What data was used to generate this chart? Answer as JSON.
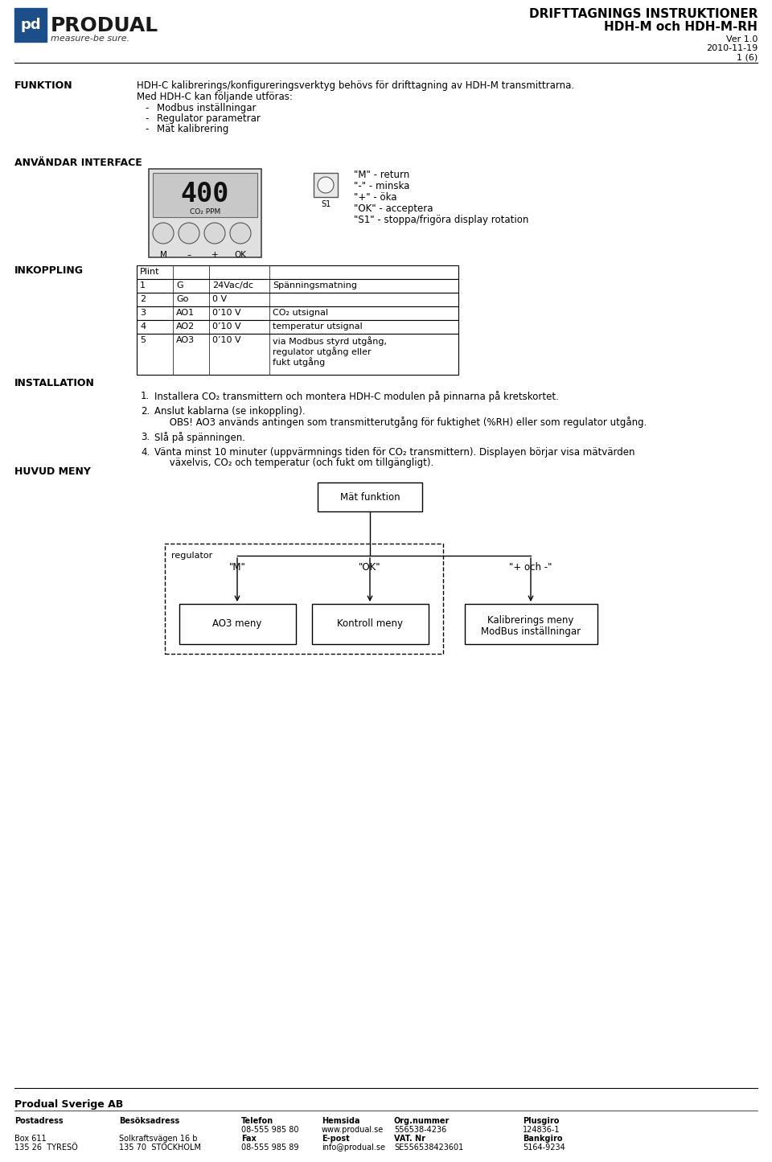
{
  "title_left": "DRIFTTAGNINGS INSTRUKTIONER",
  "title_sub": "HDH-M och HDH-M-RH",
  "version": "Ver 1.0",
  "date": "2010-11-19",
  "page": "1 (6)",
  "bg_color": "#ffffff",
  "section_funktion": "FUNKTION",
  "funktion_text1": "HDH-C kalibrerings/konfigureringsverktyg behövs för drifttagning av HDH-M transmittrarna.",
  "funktion_text2": "Med HDH-C kan följande utföras:",
  "funktion_bullets": [
    "Modbus inställningar",
    "Regulator parametrar",
    "Mät kalibrering"
  ],
  "section_anvander": "ANVÄNDAR INTERFACE",
  "anvander_desc": [
    "\"M\" - return",
    "\"-\" - minska",
    "\"+\" - öka",
    "\"OK\" - acceptera",
    "\"S1\" - stoppa/frigöra display rotation"
  ],
  "section_inkoppling": "INKOPPLING",
  "table_rows": [
    [
      "1",
      "G",
      "24Vac/dc",
      "Spänningsmatning"
    ],
    [
      "2",
      "Go",
      "0 V",
      ""
    ],
    [
      "3",
      "AO1",
      "0’10 V",
      "CO₂ utsignal"
    ],
    [
      "4",
      "AO2",
      "0’10 V",
      "temperatur utsignal"
    ],
    [
      "5",
      "AO3",
      "0’10 V",
      "via Modbus styrd utgång,\nregulator utgång eller\nfukt utgång"
    ]
  ],
  "section_installation": "INSTALLATION",
  "installation_items": [
    "Installera CO₂ transmittern och montera HDH-C modulen på pinnarna på kretskortet.",
    "Anslut kablarna (se inkoppling).\n     OBS! AO3 används antingen som transmitterutgång för fuktighet (%RH) eller som regulator utgång.",
    "Slå på spänningen.",
    "Vänta minst 10 minuter (uppvärmnings tiden för CO₂ transmittern). Displayen börjar visa mätvärden\n     växelvis, CO₂ och temperatur (och fukt om tillgängligt)."
  ],
  "section_huvud": "HUVUD MENY",
  "footer_company": "Produal Sverige AB"
}
